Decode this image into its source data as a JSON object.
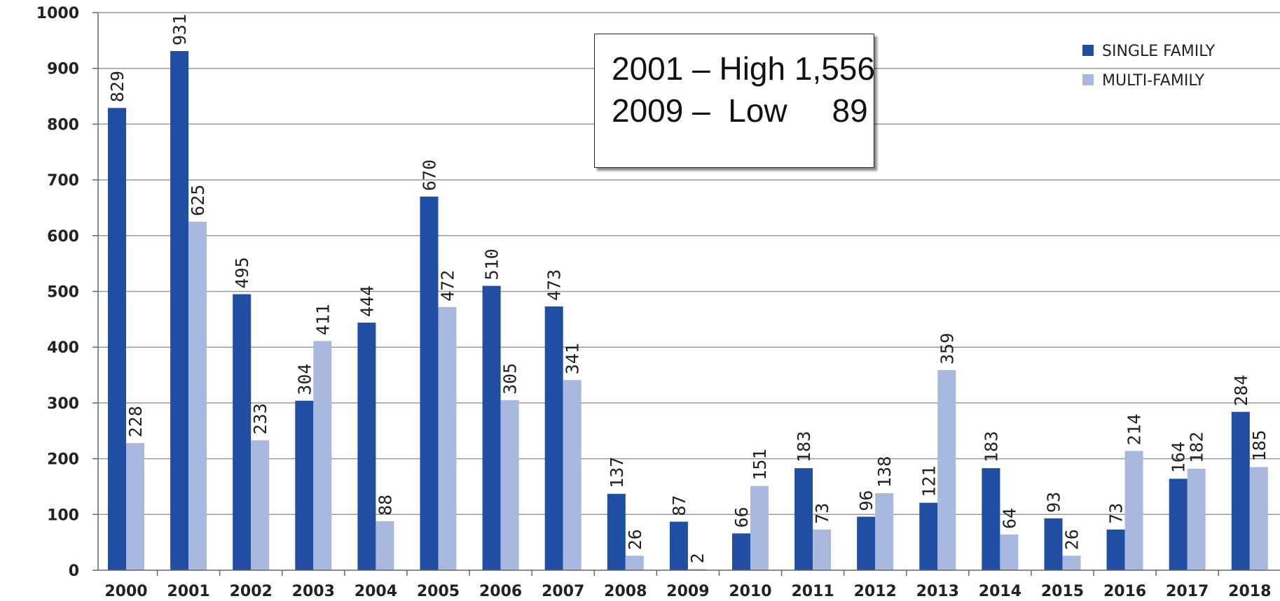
{
  "chart_data": {
    "type": "bar",
    "title": "",
    "xlabel": "",
    "ylabel": "",
    "ylim": [
      0,
      1000
    ],
    "yticks": [
      0,
      100,
      200,
      300,
      400,
      500,
      600,
      700,
      800,
      900,
      1000
    ],
    "grid": true,
    "legend_position": "top-right",
    "categories": [
      "2000",
      "2001",
      "2002",
      "2003",
      "2004",
      "2005",
      "2006",
      "2007",
      "2008",
      "2009",
      "2010",
      "2011",
      "2012",
      "2013",
      "2014",
      "2015",
      "2016",
      "2017",
      "2018"
    ],
    "series": [
      {
        "name": "SINGLE FAMILY",
        "color": "#1f4ea3",
        "values": [
          829,
          931,
          495,
          304,
          444,
          670,
          510,
          473,
          137,
          87,
          66,
          183,
          96,
          121,
          183,
          93,
          73,
          164,
          284
        ]
      },
      {
        "name": "MULTI-FAMILY",
        "color": "#a8b8df",
        "values": [
          228,
          625,
          233,
          411,
          88,
          472,
          305,
          341,
          26,
          2,
          151,
          73,
          138,
          359,
          64,
          26,
          214,
          182,
          185
        ]
      }
    ],
    "annotations": [
      {
        "text": "2001 – High 1,556"
      },
      {
        "text": "2009 –  Low     89"
      }
    ]
  }
}
